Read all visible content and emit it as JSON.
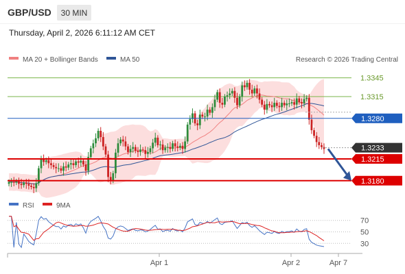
{
  "header": {
    "pair": "GBP/USD",
    "timeframe": "30 MIN",
    "datetime": "Thursday, April 2, 2026 6:11:12 AM CET"
  },
  "legend": {
    "ma20": "MA 20 + Bollinger Bands",
    "ma50": "MA 50",
    "credit": "Research © 2026 Trading Central",
    "rsi": "RSI",
    "rsi_ma": "9MA"
  },
  "colors": {
    "bull": "#2e8b3b",
    "bear": "#cc2222",
    "ma20": "#f08080",
    "band_fill": "#fbd6d6",
    "ma50": "#2f5597",
    "green_level": "#7ab648",
    "pivot": "#1f5fbf",
    "support": "#dd0000",
    "current": "#333333",
    "rsi": "#4472c4",
    "rsi_ma": "#dd2222"
  },
  "chart_data": [
    {
      "type": "line",
      "title": "GBP/USD 30 MIN",
      "ylim": [
        1.316,
        1.336
      ],
      "x_tick_labels": [
        "Apr 1",
        "Apr 2",
        "Apr 7"
      ],
      "levels": [
        {
          "value": 1.3345,
          "label": "1.3345",
          "style": "resistance"
        },
        {
          "value": 1.3315,
          "label": "1.3315",
          "style": "resistance"
        },
        {
          "value": 1.328,
          "label": "1.3280",
          "style": "pivot"
        },
        {
          "value": 1.3233,
          "label": "1.3233",
          "style": "current"
        },
        {
          "value": 1.3215,
          "label": "1.3215",
          "style": "support"
        },
        {
          "value": 1.318,
          "label": "1.3180",
          "style": "support"
        }
      ],
      "forecast_arrow": {
        "from": 1.3231,
        "to": 1.318
      },
      "series_close": [
        1.3178,
        1.3178,
        1.3177,
        1.3179,
        1.3175,
        1.3173,
        1.3177,
        1.3175,
        1.3172,
        1.317,
        1.3168,
        1.3176,
        1.32,
        1.3214,
        1.321,
        1.3213,
        1.3208,
        1.3205,
        1.3202,
        1.32,
        1.32,
        1.3196,
        1.3203,
        1.3201,
        1.3206,
        1.3208,
        1.3205,
        1.3211,
        1.3209,
        1.3212,
        1.3206,
        1.3196,
        1.3218,
        1.3232,
        1.324,
        1.3248,
        1.326,
        1.325,
        1.3235,
        1.3222,
        1.3186,
        1.318,
        1.3192,
        1.3225,
        1.324,
        1.3246,
        1.3243,
        1.3235,
        1.3226,
        1.3231,
        1.3234,
        1.3228,
        1.3226,
        1.323,
        1.3229,
        1.3223,
        1.3226,
        1.3232,
        1.3241,
        1.3249,
        1.3237,
        1.3238,
        1.3229,
        1.3233,
        1.3234,
        1.3231,
        1.324,
        1.3235,
        1.3233,
        1.3236,
        1.3231,
        1.3243,
        1.327,
        1.3279,
        1.3288,
        1.3272,
        1.3269,
        1.3286,
        1.3283,
        1.3283,
        1.3294,
        1.3289,
        1.3298,
        1.331,
        1.3322,
        1.3305,
        1.3302,
        1.3315,
        1.3317,
        1.332,
        1.3324,
        1.3313,
        1.3301,
        1.3315,
        1.3333,
        1.333,
        1.3337,
        1.3326,
        1.332,
        1.3328,
        1.332,
        1.331,
        1.3302,
        1.3294,
        1.3303,
        1.3301,
        1.3298,
        1.3305,
        1.33,
        1.3298,
        1.3305,
        1.3301,
        1.3304,
        1.3304,
        1.3306,
        1.3302,
        1.3312,
        1.3306,
        1.3304,
        1.3311,
        1.3313,
        1.3278,
        1.3261,
        1.3252,
        1.3242,
        1.3237,
        1.3234,
        1.3231
      ],
      "series": [
        {
          "name": "MA 20",
          "role": "ma20"
        },
        {
          "name": "MA 50",
          "role": "ma50"
        }
      ]
    },
    {
      "type": "line",
      "title": "RSI",
      "ylim": [
        22,
        78
      ],
      "y_ticks": [
        30,
        50,
        70
      ],
      "series": [
        {
          "name": "RSI",
          "role": "rsi"
        },
        {
          "name": "9MA",
          "role": "rsi_ma"
        }
      ]
    }
  ]
}
